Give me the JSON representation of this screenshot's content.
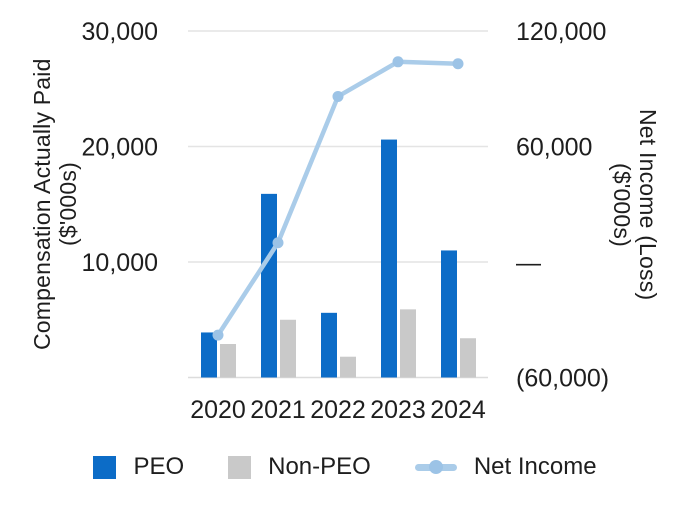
{
  "chart_data": {
    "type": "combo-bar-line",
    "categories": [
      "2020",
      "2021",
      "2022",
      "2023",
      "2024"
    ],
    "series": [
      {
        "name": "PEO",
        "type": "bar",
        "axis": "left",
        "color": "#0c6cc7",
        "values": [
          3900,
          15900,
          5600,
          20600,
          11000
        ]
      },
      {
        "name": "Non-PEO",
        "type": "bar",
        "axis": "left",
        "color": "#c9c9c9",
        "values": [
          2900,
          5000,
          1800,
          5900,
          3400
        ]
      },
      {
        "name": "Net Income",
        "type": "line",
        "axis": "right",
        "color": "#aacce9",
        "point_color": "#9cc3e6",
        "values": [
          -38000,
          10000,
          86000,
          104000,
          103000
        ]
      }
    ],
    "left_axis": {
      "title_line1": "Compensation Actually Paid",
      "title_line2": "($'000s)",
      "range": [
        0,
        30000
      ],
      "ticks": [
        {
          "value": 30000,
          "label": "30,000"
        },
        {
          "value": 20000,
          "label": "20,000"
        },
        {
          "value": 10000,
          "label": "10,000"
        }
      ]
    },
    "right_axis": {
      "title_line1": "Net Income (Loss)",
      "title_line2": "($'000s)",
      "range": [
        -60000,
        120000
      ],
      "ticks": [
        {
          "value": 120000,
          "label": "120,000"
        },
        {
          "value": 60000,
          "label": "60,000"
        },
        {
          "value": 0,
          "label": "—"
        },
        {
          "value": -60000,
          "label": "(60,000)"
        }
      ]
    },
    "legend": {
      "position": "bottom",
      "items": [
        "PEO",
        "Non-PEO",
        "Net Income"
      ]
    },
    "grid": true,
    "colors": {
      "grid": "#e4e4e4",
      "axis_line": "#dcdcdc",
      "text": "#1e1e1e",
      "background": "#ffffff"
    }
  }
}
